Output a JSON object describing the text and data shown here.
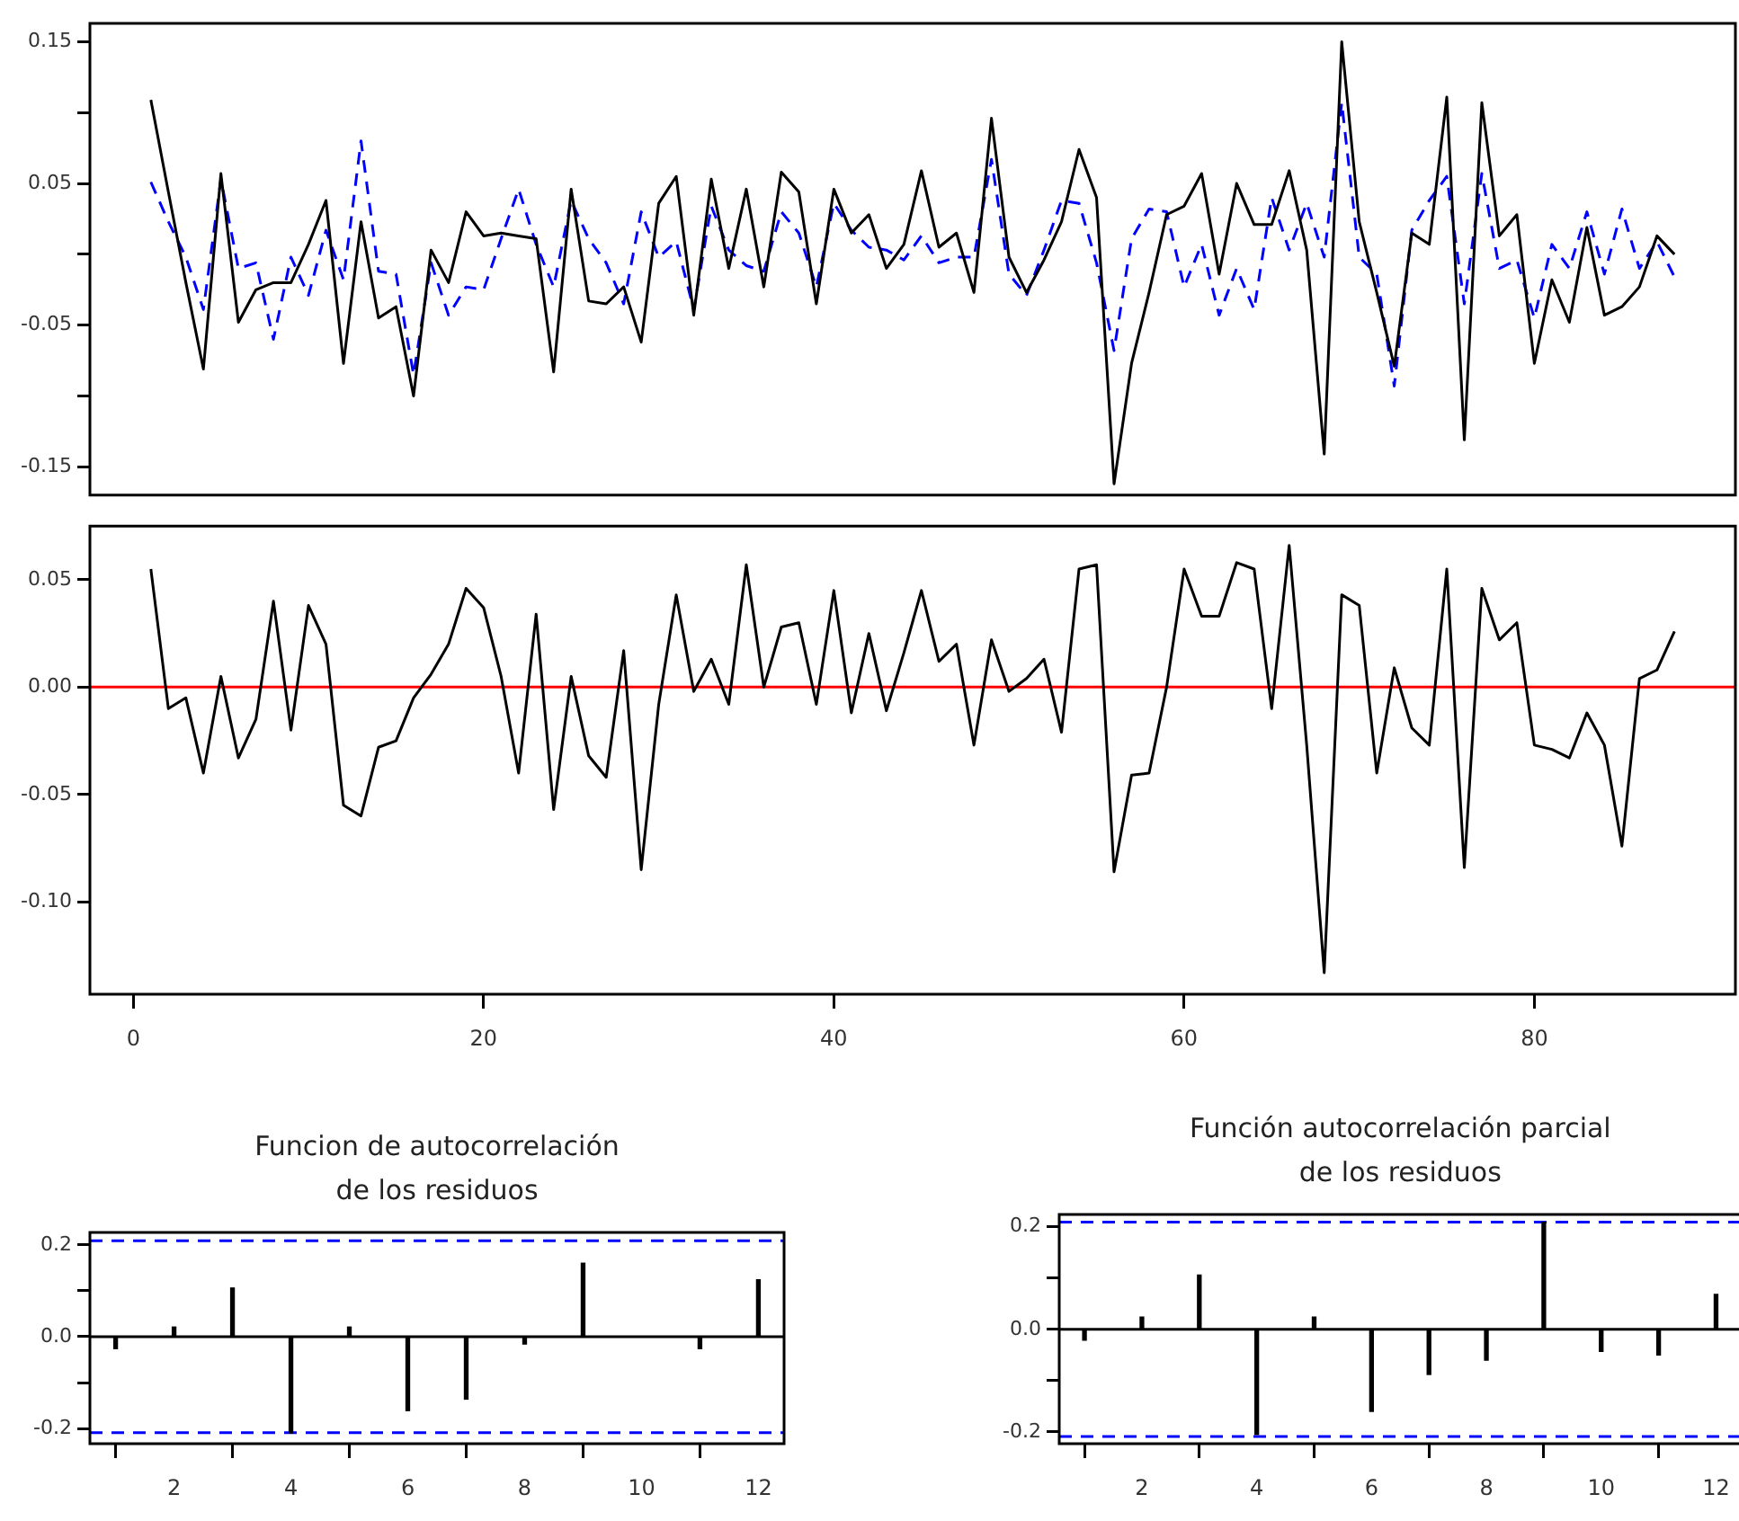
{
  "chart_data": [
    {
      "type": "line",
      "marker": "none",
      "tick_labels": "y",
      "x": [
        1,
        2,
        3,
        4,
        5,
        6,
        7,
        8,
        9,
        10,
        11,
        12,
        13,
        14,
        15,
        16,
        17,
        18,
        19,
        20,
        21,
        22,
        23,
        24,
        25,
        26,
        27,
        28,
        29,
        30,
        31,
        32,
        33,
        34,
        35,
        36,
        37,
        38,
        39,
        40,
        41,
        42,
        43,
        44,
        45,
        46,
        47,
        48,
        49,
        50,
        51,
        52,
        53,
        54,
        55,
        56,
        57,
        58,
        59,
        60,
        61,
        62,
        63,
        64,
        65,
        66,
        67,
        68,
        69,
        70,
        71,
        72,
        73,
        74,
        75,
        76,
        77,
        78,
        79,
        80,
        81,
        82,
        83,
        84,
        85,
        86,
        87,
        88
      ],
      "series": [
        {
          "color": "#000000",
          "line_style": "solid",
          "values": [
            0.109,
            0.044,
            -0.02,
            -0.081,
            0.057,
            -0.048,
            -0.025,
            -0.02,
            -0.02,
            0.007,
            0.038,
            -0.077,
            0.023,
            -0.045,
            -0.037,
            -0.1,
            0.003,
            -0.02,
            0.03,
            0.013,
            0.015,
            0.013,
            0.011,
            -0.083,
            0.046,
            -0.033,
            -0.035,
            -0.023,
            -0.062,
            0.036,
            0.055,
            -0.043,
            0.053,
            -0.01,
            0.046,
            -0.023,
            0.058,
            0.044,
            -0.035,
            0.046,
            0.015,
            0.028,
            -0.01,
            0.007,
            0.059,
            0.005,
            0.015,
            -0.027,
            0.096,
            -0.002,
            -0.027,
            -0.004,
            0.023,
            0.074,
            0.04,
            -0.162,
            -0.077,
            -0.027,
            0.028,
            0.034,
            0.057,
            -0.014,
            0.05,
            0.021,
            0.021,
            0.059,
            0.003,
            -0.141,
            0.15,
            0.023,
            -0.027,
            -0.079,
            0.015,
            0.007,
            0.111,
            -0.131,
            0.107,
            0.013,
            0.028,
            -0.077,
            -0.018,
            -0.048,
            0.019,
            -0.043,
            -0.037,
            -0.023,
            0.013,
            0.0
          ]
        },
        {
          "color": "#0000ff",
          "line_style": "dashed",
          "values": [
            0.051,
            0.023,
            -0.002,
            -0.039,
            0.053,
            -0.01,
            -0.006,
            -0.06,
            -0.002,
            -0.029,
            0.017,
            -0.018,
            0.08,
            -0.012,
            -0.014,
            -0.085,
            -0.006,
            -0.043,
            -0.023,
            -0.025,
            0.011,
            0.046,
            0.007,
            -0.023,
            0.038,
            0.011,
            -0.006,
            -0.035,
            0.03,
            -0.002,
            0.009,
            -0.039,
            0.034,
            0.003,
            -0.008,
            -0.012,
            0.03,
            0.015,
            -0.023,
            0.036,
            0.017,
            0.005,
            0.003,
            -0.004,
            0.013,
            -0.006,
            -0.002,
            -0.002,
            0.067,
            -0.014,
            -0.029,
            0.003,
            0.038,
            0.036,
            -0.006,
            -0.068,
            0.011,
            0.032,
            0.03,
            -0.023,
            0.007,
            -0.043,
            -0.01,
            -0.039,
            0.04,
            0.003,
            0.036,
            -0.002,
            0.107,
            -0.002,
            -0.014,
            -0.093,
            0.017,
            0.038,
            0.055,
            -0.035,
            0.057,
            -0.01,
            -0.004,
            -0.045,
            0.007,
            -0.01,
            0.03,
            -0.014,
            0.032,
            -0.01,
            0.009,
            -0.016
          ]
        }
      ],
      "xlim": [
        -2.48,
        91.48
      ],
      "ylim": [
        -0.17,
        0.163
      ],
      "yticks": [
        0.15,
        {
          "value": 0.1,
          "label": null
        },
        0.05,
        {
          "value": 0,
          "label": null
        },
        -0.05,
        {
          "value": -0.1,
          "label": null
        },
        -0.15
      ]
    },
    {
      "type": "line",
      "marker": "none",
      "color": "#000000",
      "x": [
        1,
        2,
        3,
        4,
        5,
        6,
        7,
        8,
        9,
        10,
        11,
        12,
        13,
        14,
        15,
        16,
        17,
        18,
        19,
        20,
        21,
        22,
        23,
        24,
        25,
        26,
        27,
        28,
        29,
        30,
        31,
        32,
        33,
        34,
        35,
        36,
        37,
        38,
        39,
        40,
        41,
        42,
        43,
        44,
        45,
        46,
        47,
        48,
        49,
        50,
        51,
        52,
        53,
        54,
        55,
        56,
        57,
        58,
        59,
        60,
        61,
        62,
        63,
        64,
        65,
        66,
        67,
        68,
        69,
        70,
        71,
        72,
        73,
        74,
        75,
        76,
        77,
        78,
        79,
        80,
        81,
        82,
        83,
        84,
        85,
        86,
        87,
        88
      ],
      "values": [
        0.055,
        -0.01,
        -0.005,
        -0.04,
        0.005,
        -0.033,
        -0.015,
        0.04,
        -0.02,
        0.038,
        0.02,
        -0.055,
        -0.06,
        -0.028,
        -0.025,
        -0.005,
        0.006,
        0.02,
        0.046,
        0.037,
        0.005,
        -0.04,
        0.034,
        -0.057,
        0.005,
        -0.032,
        -0.042,
        0.017,
        -0.085,
        -0.008,
        0.043,
        -0.002,
        0.013,
        -0.008,
        0.057,
        0.0,
        0.028,
        0.03,
        -0.008,
        0.045,
        -0.012,
        0.025,
        -0.011,
        0.016,
        0.045,
        0.012,
        0.02,
        -0.027,
        0.022,
        -0.002,
        0.004,
        0.013,
        -0.021,
        0.055,
        0.057,
        -0.086,
        -0.041,
        -0.04,
        0.0,
        0.055,
        0.033,
        0.033,
        0.058,
        0.055,
        -0.01,
        0.066,
        -0.027,
        -0.133,
        0.043,
        0.038,
        -0.04,
        0.009,
        -0.019,
        -0.027,
        0.055,
        -0.084,
        0.046,
        0.022,
        0.03,
        -0.027,
        -0.029,
        -0.033,
        -0.012,
        -0.027,
        -0.074,
        0.004,
        0.008,
        0.026
      ],
      "xlim": [
        -2.48,
        91.48
      ],
      "xticks": [
        0,
        20,
        40,
        60,
        80
      ],
      "ylim": [
        -0.143,
        0.075
      ],
      "yticks": [
        0.05,
        {
          "value": 0,
          "label": "0.00"
        },
        -0.05,
        {
          "value": -0.1,
          "label": "-0.10"
        }
      ],
      "ref_lines": [
        {
          "axis": "y",
          "value": 0,
          "color": "#ff0000",
          "line_style": "solid"
        }
      ]
    },
    {
      "type": "bar",
      "title": "Funcion de autocorrelación\nde los residuos",
      "color": "#000000",
      "x": [
        1,
        2,
        3,
        4,
        5,
        6,
        7,
        8,
        9,
        10,
        11,
        12
      ],
      "values": [
        -0.026,
        0.021,
        0.106,
        -0.21,
        0.021,
        -0.161,
        -0.136,
        -0.016,
        0.16,
        0.0,
        -0.026,
        0.124
      ],
      "xlim": [
        0.56,
        12.44
      ],
      "xticks": [
        2,
        4,
        6,
        8,
        10,
        12
      ],
      "ylim": [
        -0.233,
        0.227
      ],
      "yticks": [
        0.2,
        {
          "value": 0.1,
          "label": null
        },
        {
          "value": 0,
          "label": "0.0"
        },
        {
          "value": -0.1,
          "label": null
        },
        -0.2
      ],
      "ref_lines": [
        {
          "axis": "y",
          "value": 0,
          "color": "#000000",
          "line_style": "solid"
        },
        {
          "axis": "y",
          "value": 0.209,
          "color": "#0000ff",
          "line_style": "dashed"
        },
        {
          "axis": "y",
          "value": -0.209,
          "color": "#0000ff",
          "line_style": "dashed"
        }
      ]
    },
    {
      "type": "bar",
      "title": "Función autocorrelación parcial\nde los residuos",
      "color": "#000000",
      "x": [
        1,
        2,
        3,
        4,
        5,
        6,
        7,
        8,
        9,
        10,
        11,
        12
      ],
      "values": [
        -0.021,
        0.024,
        0.106,
        -0.205,
        0.024,
        -0.16,
        -0.088,
        -0.06,
        0.209,
        -0.043,
        -0.05,
        0.068
      ],
      "xlim": [
        0.56,
        12.44
      ],
      "xticks": [
        2,
        4,
        6,
        8,
        10,
        12
      ],
      "ylim": [
        -0.223,
        0.224
      ],
      "yticks": [
        0.2,
        {
          "value": 0.1,
          "label": null
        },
        {
          "value": 0,
          "label": "0.0"
        },
        {
          "value": -0.1,
          "label": null
        },
        -0.2
      ],
      "ref_lines": [
        {
          "axis": "y",
          "value": 0,
          "color": "#000000",
          "line_style": "solid"
        },
        {
          "axis": "y",
          "value": 0.209,
          "color": "#0000ff",
          "line_style": "dashed"
        },
        {
          "axis": "y",
          "value": -0.209,
          "color": "#0000ff",
          "line_style": "dashed"
        }
      ]
    }
  ]
}
